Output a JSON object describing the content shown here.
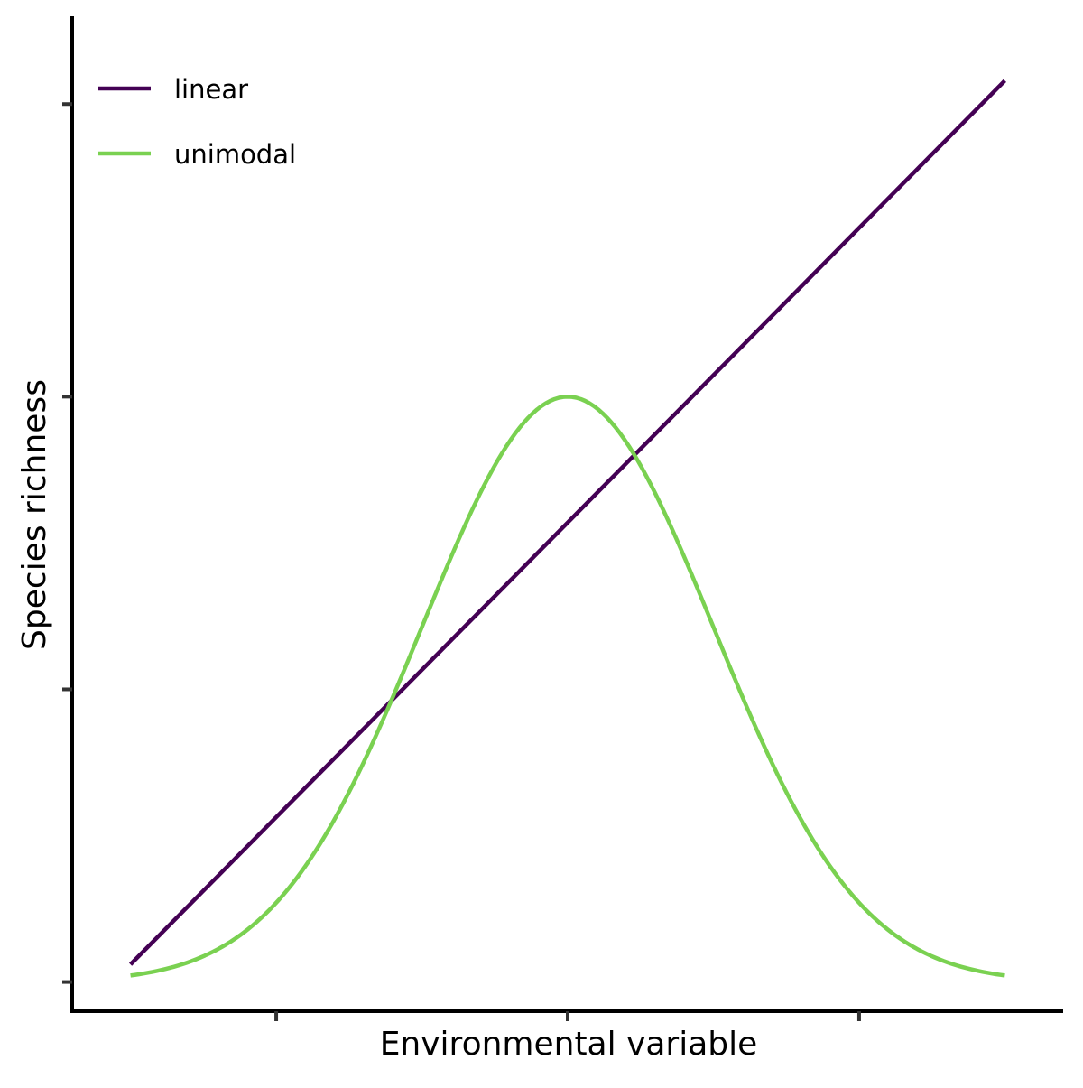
{
  "chart_data": {
    "type": "line",
    "title": "",
    "xlabel": "Environmental variable",
    "ylabel": "Species richness",
    "xlim": [
      -3.4,
      3.4
    ],
    "ylim": [
      -0.05,
      1.65
    ],
    "x_ticks": [
      -2,
      0,
      2
    ],
    "y_ticks": [
      0,
      0.5,
      1,
      1.5
    ],
    "tick_labels_shown": false,
    "grid": false,
    "legend": "top-left",
    "series": [
      {
        "name": "linear",
        "color": "#440154",
        "x": [
          -3,
          3
        ],
        "y": [
          0.03,
          1.54
        ]
      },
      {
        "name": "unimodal",
        "color": "#7AD151",
        "function": "gaussian",
        "mean": 0,
        "sd": 1,
        "peak": 1,
        "x_range": [
          -3,
          3
        ]
      }
    ]
  }
}
